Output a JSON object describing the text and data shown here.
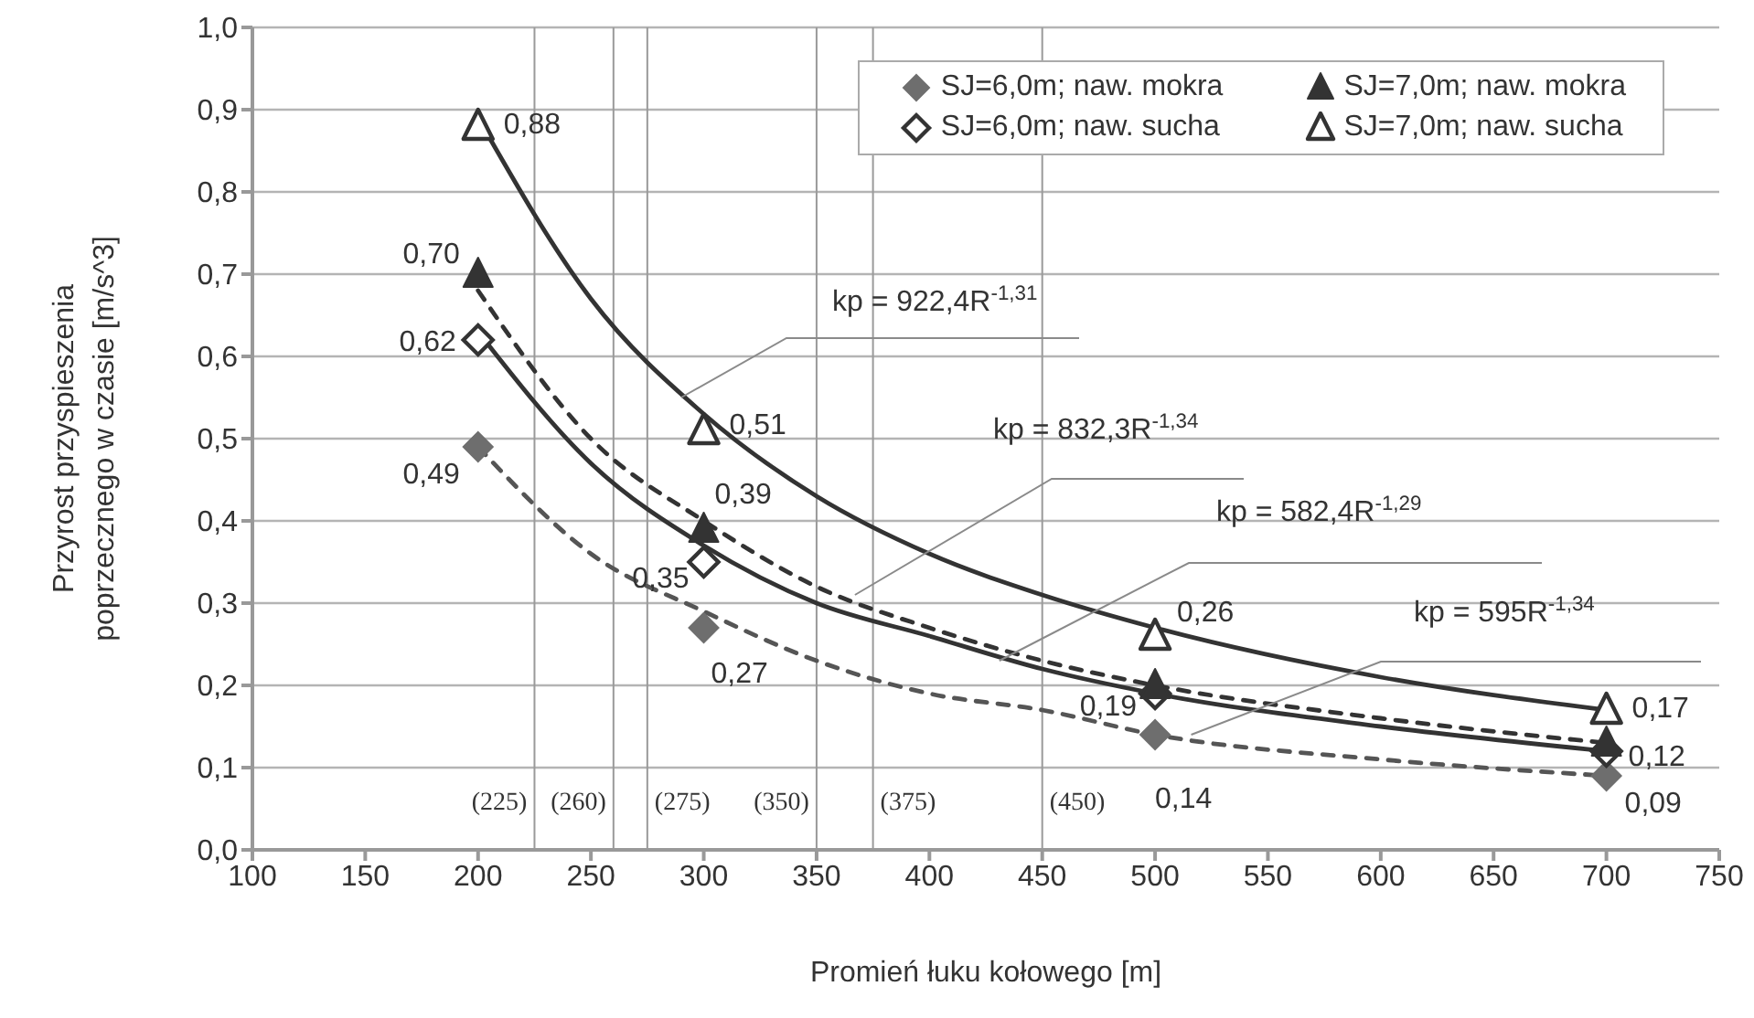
{
  "chart_data": {
    "type": "scatter",
    "xlabel": "Promień łuku kołowego [m]",
    "ylabel": "Przyrost przyspieszenia poprzecznego w czasie [m/s^3]",
    "x": [
      200,
      300,
      500,
      700
    ],
    "xlim": [
      100,
      750
    ],
    "xticks": [
      100,
      150,
      200,
      250,
      300,
      350,
      400,
      450,
      500,
      550,
      600,
      650,
      700,
      750
    ],
    "ylim": [
      0,
      1
    ],
    "yticks": [
      {
        "value": 0,
        "label": "0,0"
      },
      {
        "value": 0.1,
        "label": "0,1"
      },
      {
        "value": 0.2,
        "label": "0,2"
      },
      {
        "value": 0.3,
        "label": "0,3"
      },
      {
        "value": 0.4,
        "label": "0,4"
      },
      {
        "value": 0.5,
        "label": "0,5"
      },
      {
        "value": 0.6,
        "label": "0,6"
      },
      {
        "value": 0.7,
        "label": "0,7"
      },
      {
        "value": 0.8,
        "label": "0,8"
      },
      {
        "value": 0.9,
        "label": "0,9"
      },
      {
        "value": 1,
        "label": "1,0"
      }
    ],
    "grid": "y",
    "legend": "top right",
    "series": [
      {
        "name": "SJ=6,0m; naw. mokra",
        "color": "#6e6e6e",
        "marker": "diamond",
        "values": [
          0.49,
          0.27,
          0.14,
          0.09
        ],
        "value_labels": [
          "0,49",
          "0,27",
          "0,14",
          "0,09"
        ]
      },
      {
        "name": "SJ=6,0m; naw. sucha",
        "color": "#ffffff",
        "marker": "diamond",
        "values": [
          0.62,
          0.35,
          0.19,
          0.12
        ],
        "value_labels": [
          "0,62",
          "0,35",
          "0,19",
          "0,12"
        ]
      },
      {
        "name": "SJ=7,0m; naw. mokra",
        "color": "#333333",
        "marker": "triangle",
        "values": [
          0.7,
          0.39,
          0.2,
          0.13
        ],
        "value_labels": [
          "0,70",
          "0,39",
          null,
          null
        ]
      },
      {
        "name": "SJ=7,0m; naw. sucha",
        "color": "#ffffff",
        "marker": "triangle",
        "values": [
          0.88,
          0.51,
          0.26,
          0.17
        ],
        "value_labels": [
          "0,88",
          "0,51",
          "0,26",
          "0,17"
        ]
      },
      {
        "type": "line",
        "color": "#333333",
        "line_style": "solid",
        "marker": "none",
        "x": [
          200,
          250,
          300,
          350,
          400,
          450,
          500,
          600,
          700
        ],
        "values": [
          0.89,
          0.67,
          0.53,
          0.43,
          0.36,
          0.31,
          0.27,
          0.21,
          0.17
        ]
      },
      {
        "type": "line",
        "color": "#333333",
        "line_style": "dashed",
        "marker": "none",
        "x": [
          200,
          250,
          300,
          350,
          400,
          450,
          500,
          600,
          700
        ],
        "values": [
          0.68,
          0.5,
          0.4,
          0.32,
          0.27,
          0.23,
          0.2,
          0.16,
          0.13
        ]
      },
      {
        "type": "line",
        "color": "#333333",
        "line_style": "solid",
        "marker": "none",
        "x": [
          200,
          250,
          300,
          350,
          400,
          450,
          500,
          600,
          700
        ],
        "values": [
          0.63,
          0.47,
          0.37,
          0.3,
          0.26,
          0.22,
          0.19,
          0.15,
          0.12
        ]
      },
      {
        "type": "line",
        "color": "#555555",
        "line_style": "dashed",
        "marker": "none",
        "x": [
          200,
          250,
          300,
          350,
          400,
          450,
          500,
          600,
          700
        ],
        "values": [
          0.49,
          0.36,
          0.29,
          0.23,
          0.19,
          0.17,
          0.14,
          0.11,
          0.09
        ]
      }
    ],
    "ref_lines": [
      {
        "axis": "x",
        "value": 225,
        "label": "(225)"
      },
      {
        "axis": "x",
        "value": 260,
        "label": "(260)"
      },
      {
        "axis": "x",
        "value": 275,
        "label": "(275)"
      },
      {
        "axis": "x",
        "value": 350,
        "label": "(350)"
      },
      {
        "axis": "x",
        "value": 375,
        "label": "(375)"
      },
      {
        "axis": "x",
        "value": 450,
        "label": "(450)"
      }
    ],
    "annotations": [
      {
        "text": "kp = 922,4R$^{-1,31}$",
        "x": 290,
        "y": 0.55
      },
      {
        "text": "kp = 832,3R$^{-1,34}$",
        "x": 367,
        "y": 0.31
      },
      {
        "text": "kp = 582,4R$^{-1,29}$",
        "x": 431,
        "y": 0.23
      },
      {
        "text": "kp = 595R$^{-1,34}$",
        "x": 516,
        "y": 0.14
      }
    ]
  }
}
